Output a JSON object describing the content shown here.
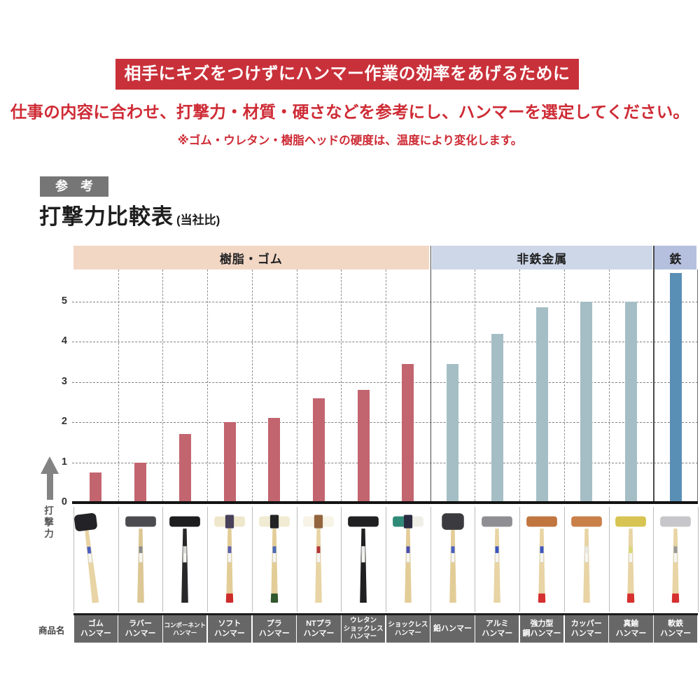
{
  "banner": {
    "text": "相手にキズをつけずにハンマー作業の効率をあげるために",
    "bg": "#c9313a",
    "text_color": "#ffffff"
  },
  "message": {
    "text": "仕事の内容に合わせ、打撃力・材質・硬さなどを参考にし、ハンマーを選定してください。",
    "color": "#ce2b35"
  },
  "note": {
    "text": "※ゴム・ウレタン・樹脂ヘッドの硬度は、温度により変化します。",
    "color": "#ce2b35"
  },
  "reference_badge": {
    "text": "参　考",
    "bg": "#767676"
  },
  "title": {
    "main": "打撃力比較表",
    "sub": "(当社比)"
  },
  "axis": {
    "y_label": "打撃力",
    "row_label": "商品名"
  },
  "colors": {
    "grid": "#808080",
    "group_separator": "#4a4a4a",
    "zero_line": "#131313",
    "name_row_bg": "#676767",
    "name_row_text": "#ffffff",
    "arrow_gray": "#838383"
  },
  "chart_data": {
    "type": "bar",
    "title": "打撃力比較表(当社比)",
    "xlabel": "",
    "ylabel": "打撃力",
    "ylim": [
      0,
      5.8
    ],
    "yticks": [
      0,
      1,
      2,
      3,
      4,
      5
    ],
    "grid": "horizontal dashed + vertical dashed column lines",
    "legend": "none",
    "groups": [
      {
        "label": "樹脂・ゴム",
        "band_color": "#f2d7c5",
        "bar_color": "#c2656f",
        "count": 8
      },
      {
        "label": "非鉄金属",
        "band_color": "#cdd7e8",
        "bar_color": "#a5bec5",
        "count": 5
      },
      {
        "label": "鉄",
        "band_color": "#b4c0dd",
        "bar_color": "#5a8fb5",
        "count": 1
      }
    ],
    "categories": [
      "ゴムハンマー",
      "ラバーハンマー",
      "コンポーネントハンマー",
      "ソフトハンマー",
      "プラハンマー",
      "NTプラハンマー",
      "ウレタンショックレスハンマー",
      "ショックレスハンマー",
      "鉛ハンマー",
      "アルミハンマー",
      "強力型鋼ハンマー",
      "カッパーハンマー",
      "真鍮ハンマー",
      "軟鉄ハンマー"
    ],
    "values": [
      0.75,
      1.0,
      1.7,
      2.0,
      2.1,
      2.6,
      2.8,
      3.45,
      3.45,
      4.2,
      4.85,
      5.0,
      5.0,
      5.7
    ],
    "products": [
      {
        "key": "gomu",
        "name_lines": [
          "ゴム",
          "ハンマー"
        ],
        "value": 0.75,
        "hammer": {
          "type": "mallet",
          "head": "#232327",
          "handle": "#e8d4a4",
          "label": "#4a5fc0",
          "tilt": -7
        }
      },
      {
        "key": "rubber",
        "name_lines": [
          "ラバー",
          "ハンマー"
        ],
        "value": 1.0,
        "hammer": {
          "type": "cyl",
          "head": "#4c4c50",
          "handle": "#dcc795",
          "label": "#8a8a8a"
        }
      },
      {
        "key": "component",
        "name_lines": [
          "コンポーネント",
          "ハンマー"
        ],
        "value": 1.7,
        "hammer": {
          "type": "cyl",
          "head": "#1d1d1f",
          "handle": "#28282a",
          "label": "#d8d8d4"
        }
      },
      {
        "key": "soft",
        "name_lines": [
          "ソフト",
          "ハンマー"
        ],
        "value": 2.0,
        "hammer": {
          "type": "cyl",
          "cap": "#efe7cb",
          "center": "#49415a",
          "handle": "#e3cd97",
          "butt": "#ce2b2b",
          "label": "#5a5fae"
        }
      },
      {
        "key": "pla",
        "name_lines": [
          "プラ",
          "ハンマー"
        ],
        "value": 2.1,
        "hammer": {
          "type": "cyl",
          "cap": "#f1ebd3",
          "center": "#232325",
          "handle": "#e3cd97",
          "butt": "#30582c",
          "label": "#4a6ab8"
        }
      },
      {
        "key": "nt-pla",
        "name_lines": [
          "NTプラ",
          "ハンマー"
        ],
        "value": 2.6,
        "hammer": {
          "type": "cyl",
          "cap": "#f7f3e6",
          "center": "#93653e",
          "handle": "#e8d4a4",
          "label": "#b23535"
        }
      },
      {
        "key": "urethane-shockless",
        "name_lines": [
          "ウレタン",
          "ショックレス",
          "ハンマー"
        ],
        "value": 2.8,
        "hammer": {
          "type": "cyl",
          "head": "#202022",
          "handle": "#202022",
          "label": "#ededeb"
        }
      },
      {
        "key": "shockless",
        "name_lines": [
          "ショックレス",
          "ハンマー"
        ],
        "value": 3.45,
        "hammer": {
          "type": "cyl",
          "cap": "#efefe7",
          "capL": "#2f8a78",
          "center": "#2b2b40",
          "handle": "#e3cd97",
          "label": "#4a4fb0"
        }
      },
      {
        "key": "lead",
        "name_lines": [
          "鉛ハンマー"
        ],
        "value": 3.45,
        "hammer": {
          "type": "mallet",
          "head": "#3b3b3f",
          "handle": "#e3cd97",
          "label": "#4a5fc0"
        }
      },
      {
        "key": "aluminum",
        "name_lines": [
          "アルミ",
          "ハンマー"
        ],
        "value": 4.2,
        "hammer": {
          "type": "cyl",
          "head": "#8f8f93",
          "handle": "#e8d4a4",
          "label": "#3a55c0"
        }
      },
      {
        "key": "power-steel",
        "name_lines": [
          "強力型",
          "鋼ハンマー"
        ],
        "value": 4.85,
        "hammer": {
          "type": "cyl",
          "head": "#c1763f",
          "handle": "#e8d4a4",
          "butt": "#d63030",
          "label": "#3a55c0"
        }
      },
      {
        "key": "copper",
        "name_lines": [
          "カッパー",
          "ハンマー"
        ],
        "value": 5.0,
        "hammer": {
          "type": "cyl",
          "head": "#ca8049",
          "handle": "#e8d4a4",
          "label": "#e8e8e4"
        }
      },
      {
        "key": "brass",
        "name_lines": [
          "真鍮",
          "ハンマー"
        ],
        "value": 5.0,
        "hammer": {
          "type": "cyl",
          "head": "#d7c453",
          "handle": "#e8d4a4",
          "butt": "#d63030",
          "label": "#d8d875"
        }
      },
      {
        "key": "soft-iron",
        "name_lines": [
          "軟鉄",
          "ハンマー"
        ],
        "value": 5.7,
        "hammer": {
          "type": "cyl",
          "head": "#c7c7cb",
          "handle": "#e8d4a4",
          "butt": "#d63030",
          "label": "#999999"
        }
      }
    ]
  }
}
